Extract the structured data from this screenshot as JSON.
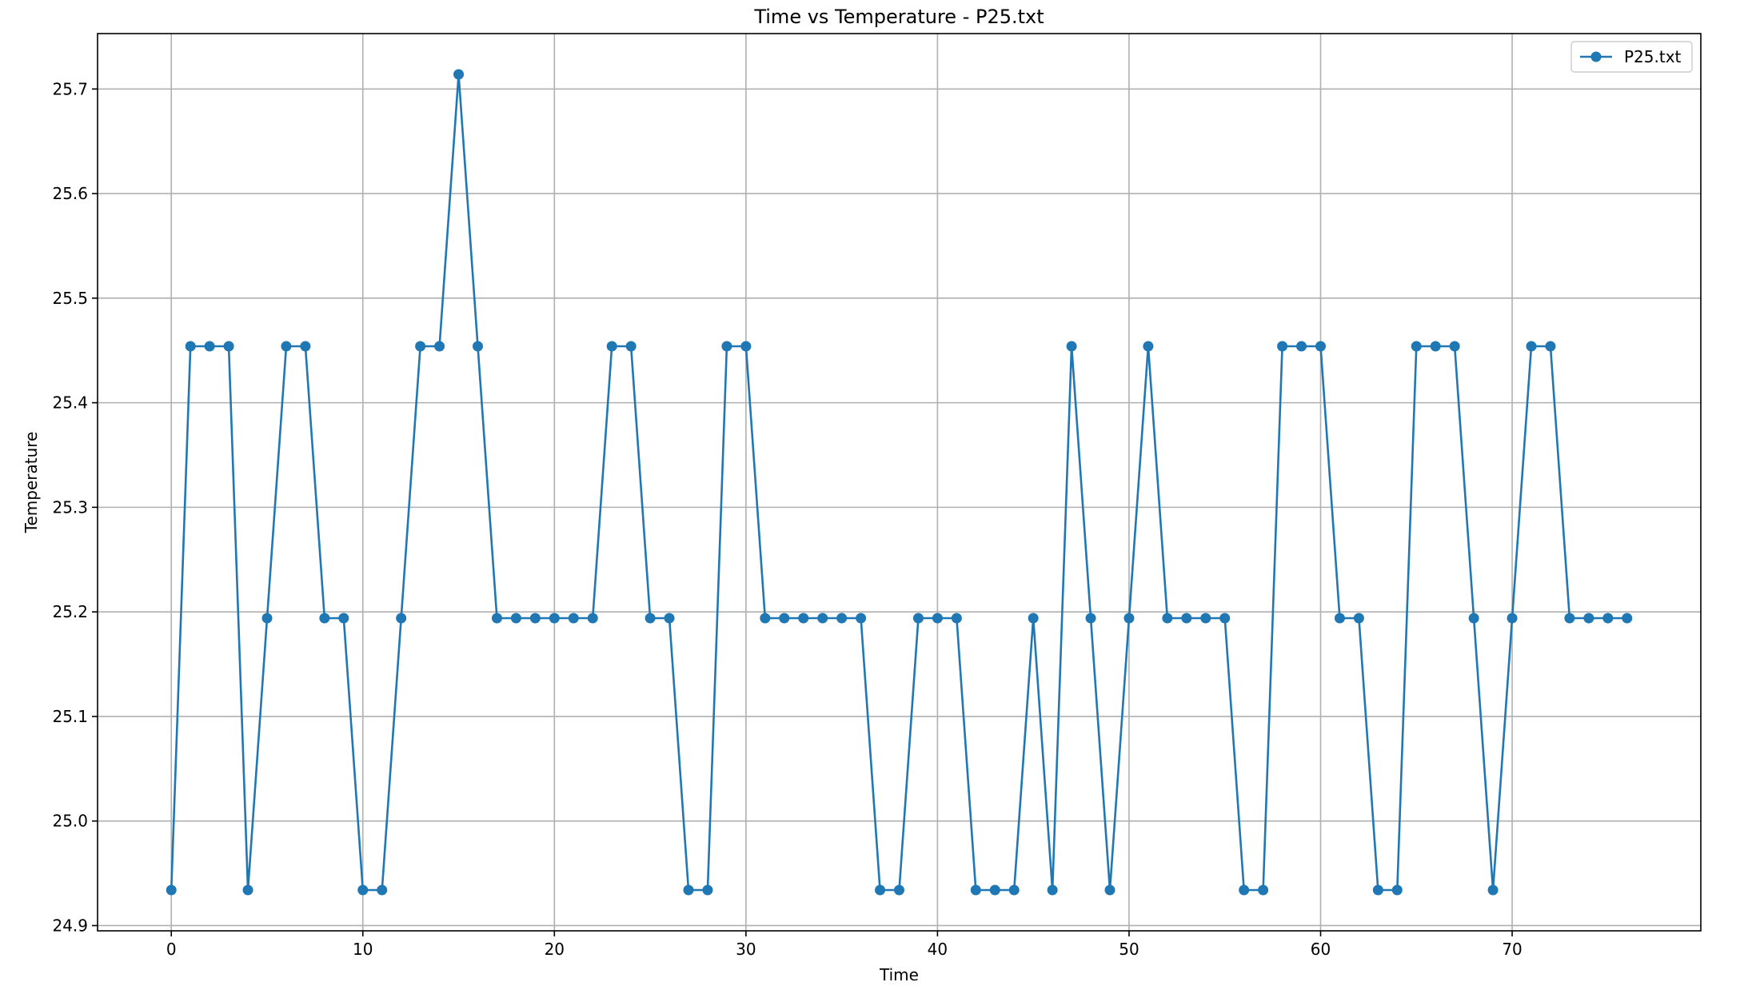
{
  "chart_data": {
    "type": "line",
    "title": "Time vs Temperature - P25.txt",
    "xlabel": "Time",
    "ylabel": "Temperature",
    "xlim": [
      -3.85,
      79.85
    ],
    "ylim": [
      24.895,
      25.753
    ],
    "x_ticks": [
      0,
      10,
      20,
      30,
      40,
      50,
      60,
      70
    ],
    "x_tick_labels": [
      "0",
      "10",
      "20",
      "30",
      "40",
      "50",
      "60",
      "70"
    ],
    "y_ticks": [
      24.9,
      25.0,
      25.1,
      25.2,
      25.3,
      25.4,
      25.5,
      25.6,
      25.7
    ],
    "y_tick_labels": [
      "24.9",
      "25.0",
      "25.1",
      "25.2",
      "25.3",
      "25.4",
      "25.5",
      "25.6",
      "25.7"
    ],
    "grid": true,
    "legend_position": "top-right",
    "legend": [
      "P25.txt"
    ],
    "series_color": "#1f77b4",
    "series": [
      {
        "name": "P25.txt",
        "x": [
          0,
          1,
          2,
          3,
          4,
          5,
          6,
          7,
          8,
          9,
          10,
          11,
          12,
          13,
          14,
          15,
          16,
          17,
          18,
          19,
          20,
          21,
          22,
          23,
          24,
          25,
          26,
          27,
          28,
          29,
          30,
          31,
          32,
          33,
          34,
          35,
          36,
          37,
          38,
          39,
          40,
          41,
          42,
          43,
          44,
          45,
          46,
          47,
          48,
          49,
          50,
          51,
          52,
          53,
          54,
          55,
          56,
          57,
          58,
          59,
          60,
          61,
          62,
          63,
          64,
          65,
          66,
          67,
          68,
          69,
          70,
          71,
          72,
          73,
          74,
          75,
          76
        ],
        "y": [
          24.934,
          25.454,
          25.454,
          25.454,
          24.934,
          25.194,
          25.454,
          25.454,
          25.194,
          25.194,
          24.934,
          24.934,
          25.194,
          25.454,
          25.454,
          25.714,
          25.454,
          25.194,
          25.194,
          25.194,
          25.194,
          25.194,
          25.194,
          25.454,
          25.454,
          25.194,
          25.194,
          24.934,
          24.934,
          25.454,
          25.454,
          25.194,
          25.194,
          25.194,
          25.194,
          25.194,
          25.194,
          24.934,
          24.934,
          25.194,
          25.194,
          25.194,
          24.934,
          24.934,
          24.934,
          25.194,
          24.934,
          25.454,
          25.194,
          24.934,
          25.194,
          25.454,
          25.194,
          25.194,
          25.194,
          25.194,
          24.934,
          24.934,
          25.454,
          25.454,
          25.454,
          25.194,
          25.194,
          24.934,
          24.934,
          25.454,
          25.454,
          25.454,
          25.194,
          24.934,
          25.194,
          25.454,
          25.454,
          25.194,
          25.194,
          25.194,
          25.194
        ]
      }
    ]
  }
}
